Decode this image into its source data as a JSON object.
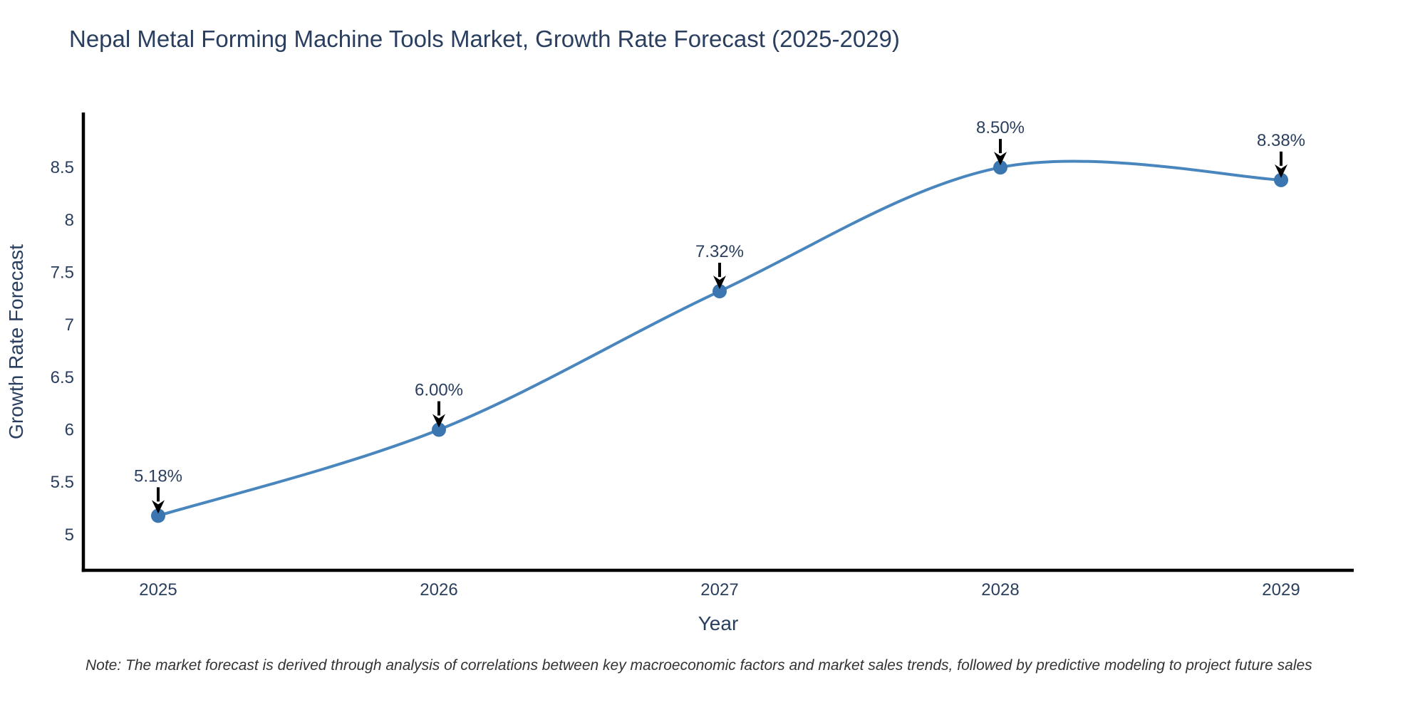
{
  "note": "Note: The market forecast is derived through analysis of correlations between key macroeconomic factors and market sales trends, followed by predictive modeling to project future sales",
  "chart_data": {
    "type": "line",
    "title": "Nepal Metal Forming Machine Tools Market, Growth Rate Forecast (2025-2029)",
    "xlabel": "Year",
    "ylabel": "Growth Rate Forecast",
    "categories": [
      "2025",
      "2026",
      "2027",
      "2028",
      "2029"
    ],
    "values": [
      5.18,
      6.0,
      7.32,
      8.5,
      8.38
    ],
    "point_labels": [
      "5.18%",
      "6.00%",
      "7.32%",
      "8.50%",
      "8.38%"
    ],
    "ytick_values": [
      5,
      5.5,
      6,
      6.5,
      7,
      7.5,
      8,
      8.5
    ],
    "ytick_labels": [
      "5",
      "5.5",
      "6",
      "6.5",
      "7",
      "7.5",
      "8",
      "8.5"
    ],
    "ylim": [
      4.66,
      9.01
    ],
    "line_shape": "spline",
    "grid": false,
    "legend": false,
    "annotations_arrow": "down-arrow",
    "colors": {
      "line": "#4a86be",
      "marker": "#3b76b0",
      "axis": "#000000",
      "text": "#2a3f5f",
      "arrow": "#000000",
      "note_text": "#333333",
      "background": "#ffffff"
    }
  }
}
